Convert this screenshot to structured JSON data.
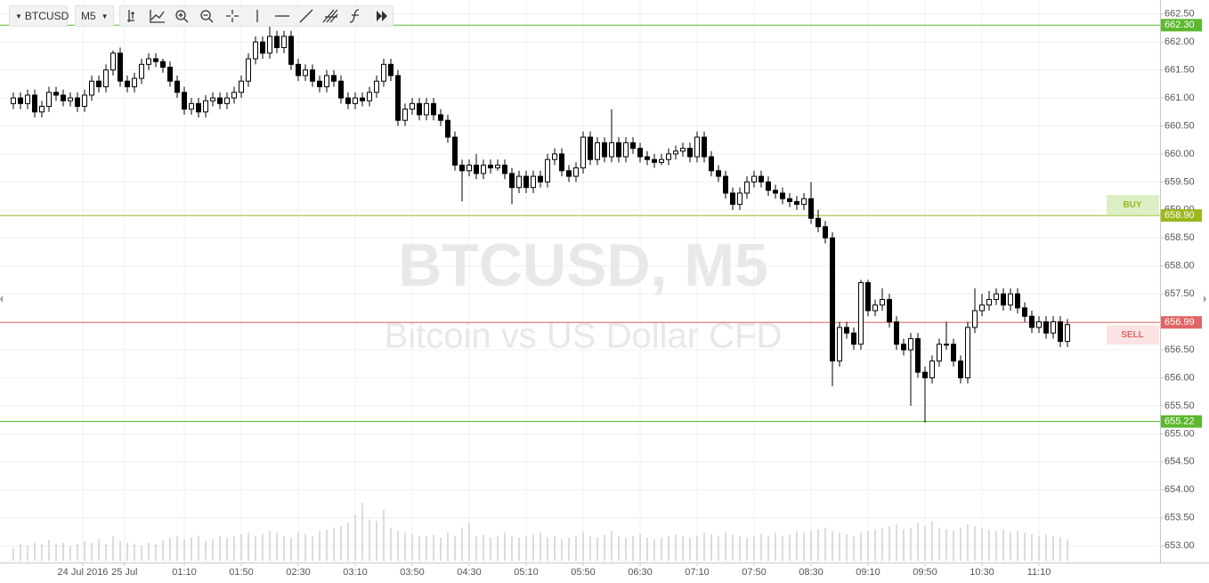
{
  "toolbar": {
    "symbol": "BTCUSD",
    "interval": "M5"
  },
  "chart_data": {
    "type": "candlestick",
    "watermark_title": "BTCUSD, M5",
    "watermark_subtitle": "Bitcoin vs US Dollar CFD",
    "ylim": [
      652.7,
      662.75
    ],
    "yticks": [
      {
        "value": 653,
        "label": "653.00"
      },
      {
        "value": 653.5,
        "label": "653.50"
      },
      {
        "value": 654,
        "label": "654.00"
      },
      {
        "value": 654.5,
        "label": "654.50"
      },
      {
        "value": 655,
        "label": "655.00"
      },
      {
        "value": 655.5,
        "label": "655.50"
      },
      {
        "value": 656,
        "label": "656.00"
      },
      {
        "value": 656.5,
        "label": "656.50"
      },
      {
        "value": 657,
        "label": "657.00"
      },
      {
        "value": 657.5,
        "label": "657.50"
      },
      {
        "value": 658,
        "label": "658.00"
      },
      {
        "value": 658.5,
        "label": "658.50"
      },
      {
        "value": 659,
        "label": "659.00"
      },
      {
        "value": 659.5,
        "label": "659.50"
      },
      {
        "value": 660,
        "label": "660.00"
      },
      {
        "value": 660.5,
        "label": "660.50"
      },
      {
        "value": 661,
        "label": "661.00"
      },
      {
        "value": 661.5,
        "label": "661.50"
      },
      {
        "value": 662,
        "label": "662.00"
      },
      {
        "value": 662.5,
        "label": "662.50"
      }
    ],
    "xticks": [
      {
        "value": 9.75,
        "label": "24 Jul 2016"
      },
      {
        "value": 15.6,
        "label": "25 Jul"
      },
      {
        "value": 24,
        "label": "01:10"
      },
      {
        "value": 32,
        "label": "01:50"
      },
      {
        "value": 40,
        "label": "02:30"
      },
      {
        "value": 48,
        "label": "03:10"
      },
      {
        "value": 56,
        "label": "03:50"
      },
      {
        "value": 64,
        "label": "04:30"
      },
      {
        "value": 72,
        "label": "05:10"
      },
      {
        "value": 80,
        "label": "05:50"
      },
      {
        "value": 88,
        "label": "06:30"
      },
      {
        "value": 96,
        "label": "07:10"
      },
      {
        "value": 104,
        "label": "07:50"
      },
      {
        "value": 112,
        "label": "08:30"
      },
      {
        "value": 120,
        "label": "09:10"
      },
      {
        "value": 128,
        "label": "09:50"
      },
      {
        "value": 136,
        "label": "10:30"
      },
      {
        "value": 144,
        "label": "11:10"
      }
    ],
    "grid": true,
    "up_color": "#ffffff",
    "down_color": "#000000",
    "volume_color": "#b8b8b8",
    "levels": [
      {
        "value": 662.3,
        "label": "662.30",
        "color": "#5cb82d"
      },
      {
        "value": 658.9,
        "label": "658.90",
        "color": "#9ab81e",
        "tag": "BUY",
        "tag_color": "#dcefc4"
      },
      {
        "value": 656.99,
        "label": "656.99",
        "color": "#e06666",
        "tag": "SELL",
        "tag_color": "#fbe3e3"
      },
      {
        "value": 655.22,
        "label": "655.22",
        "color": "#5cb82d"
      }
    ],
    "ohlc": [
      [
        660.9,
        661.1,
        660.8,
        661.0
      ],
      [
        661.0,
        661.1,
        660.8,
        660.9
      ],
      [
        660.9,
        661.15,
        660.8,
        661.05
      ],
      [
        661.05,
        661.15,
        660.65,
        660.75
      ],
      [
        660.75,
        660.95,
        660.65,
        660.85
      ],
      [
        660.85,
        661.2,
        660.75,
        661.1
      ],
      [
        661.1,
        661.2,
        660.95,
        661.05
      ],
      [
        661.05,
        661.15,
        660.85,
        660.95
      ],
      [
        660.95,
        661.1,
        660.85,
        661.0
      ],
      [
        661.0,
        661.1,
        660.75,
        660.85
      ],
      [
        660.85,
        661.15,
        660.75,
        661.05
      ],
      [
        661.05,
        661.4,
        660.95,
        661.3
      ],
      [
        661.3,
        661.4,
        661.1,
        661.2
      ],
      [
        661.2,
        661.6,
        661.1,
        661.5
      ],
      [
        661.5,
        661.85,
        661.4,
        661.8
      ],
      [
        661.8,
        661.9,
        661.2,
        661.3
      ],
      [
        661.3,
        661.4,
        661.1,
        661.2
      ],
      [
        661.2,
        661.45,
        661.1,
        661.35
      ],
      [
        661.35,
        661.7,
        661.25,
        661.6
      ],
      [
        661.6,
        661.8,
        661.5,
        661.7
      ],
      [
        661.7,
        661.8,
        661.55,
        661.65
      ],
      [
        661.65,
        661.7,
        661.45,
        661.55
      ],
      [
        661.55,
        661.65,
        661.2,
        661.3
      ],
      [
        661.3,
        661.4,
        661.0,
        661.1
      ],
      [
        661.1,
        661.2,
        660.7,
        660.8
      ],
      [
        660.8,
        661.0,
        660.7,
        660.9
      ],
      [
        660.9,
        661.0,
        660.65,
        660.75
      ],
      [
        660.75,
        661.05,
        660.65,
        660.95
      ],
      [
        660.95,
        661.1,
        660.85,
        661.0
      ],
      [
        661.0,
        661.1,
        660.8,
        660.9
      ],
      [
        660.9,
        661.1,
        660.8,
        661.0
      ],
      [
        661.0,
        661.2,
        660.9,
        661.1
      ],
      [
        661.1,
        661.4,
        661.0,
        661.3
      ],
      [
        661.3,
        661.8,
        661.2,
        661.7
      ],
      [
        661.7,
        662.1,
        661.6,
        662.0
      ],
      [
        662.0,
        662.1,
        661.7,
        661.8
      ],
      [
        661.8,
        662.3,
        661.7,
        662.1
      ],
      [
        662.1,
        662.2,
        661.8,
        661.9
      ],
      [
        661.9,
        662.2,
        661.8,
        662.1
      ],
      [
        662.1,
        662.2,
        661.5,
        661.6
      ],
      [
        661.6,
        661.7,
        661.3,
        661.4
      ],
      [
        661.4,
        661.6,
        661.3,
        661.5
      ],
      [
        661.5,
        661.6,
        661.2,
        661.3
      ],
      [
        661.3,
        661.4,
        661.1,
        661.2
      ],
      [
        661.2,
        661.5,
        661.1,
        661.4
      ],
      [
        661.4,
        661.5,
        661.2,
        661.3
      ],
      [
        661.3,
        661.4,
        660.9,
        661.0
      ],
      [
        661.0,
        661.1,
        660.8,
        660.9
      ],
      [
        660.9,
        661.1,
        660.8,
        661.0
      ],
      [
        661.0,
        661.1,
        660.85,
        660.95
      ],
      [
        660.95,
        661.2,
        660.85,
        661.1
      ],
      [
        661.1,
        661.4,
        661.0,
        661.3
      ],
      [
        661.3,
        661.7,
        661.2,
        661.6
      ],
      [
        661.6,
        661.7,
        661.3,
        661.4
      ],
      [
        661.4,
        661.5,
        660.5,
        660.6
      ],
      [
        660.6,
        660.9,
        660.5,
        660.8
      ],
      [
        660.8,
        661.0,
        660.7,
        660.9
      ],
      [
        660.9,
        661.0,
        660.6,
        660.7
      ],
      [
        660.7,
        661.0,
        660.6,
        660.9
      ],
      [
        660.9,
        661.0,
        660.6,
        660.7
      ],
      [
        660.7,
        660.8,
        660.5,
        660.6
      ],
      [
        660.6,
        660.7,
        660.2,
        660.3
      ],
      [
        660.3,
        660.4,
        659.7,
        659.8
      ],
      [
        659.8,
        659.9,
        659.15,
        659.7
      ],
      [
        659.7,
        659.9,
        659.6,
        659.8
      ],
      [
        659.8,
        660.0,
        659.55,
        659.65
      ],
      [
        659.65,
        659.9,
        659.55,
        659.8
      ],
      [
        659.8,
        659.9,
        659.65,
        659.75
      ],
      [
        659.75,
        659.9,
        659.7,
        659.8
      ],
      [
        659.8,
        659.9,
        659.55,
        659.65
      ],
      [
        659.65,
        659.75,
        659.1,
        659.4
      ],
      [
        659.4,
        659.7,
        659.3,
        659.6
      ],
      [
        659.6,
        659.7,
        659.3,
        659.4
      ],
      [
        659.4,
        659.7,
        659.3,
        659.6
      ],
      [
        659.6,
        659.7,
        659.4,
        659.5
      ],
      [
        659.5,
        660.0,
        659.4,
        659.9
      ],
      [
        659.9,
        660.1,
        659.8,
        660.0
      ],
      [
        660.0,
        660.1,
        659.6,
        659.7
      ],
      [
        659.7,
        659.8,
        659.5,
        659.6
      ],
      [
        659.6,
        659.85,
        659.5,
        659.75
      ],
      [
        659.75,
        660.4,
        659.65,
        660.3
      ],
      [
        660.3,
        660.4,
        659.8,
        659.9
      ],
      [
        659.9,
        660.3,
        659.8,
        660.2
      ],
      [
        660.2,
        660.3,
        659.85,
        659.95
      ],
      [
        659.95,
        660.8,
        659.85,
        660.2
      ],
      [
        660.2,
        660.3,
        659.85,
        659.95
      ],
      [
        659.95,
        660.3,
        659.85,
        660.2
      ],
      [
        660.2,
        660.3,
        660.0,
        660.1
      ],
      [
        660.1,
        660.2,
        659.85,
        659.95
      ],
      [
        659.95,
        660.05,
        659.8,
        659.9
      ],
      [
        659.9,
        660.0,
        659.75,
        659.85
      ],
      [
        659.85,
        660.0,
        659.8,
        659.9
      ],
      [
        659.9,
        660.1,
        659.8,
        660.0
      ],
      [
        660.0,
        660.15,
        659.9,
        660.05
      ],
      [
        660.05,
        660.2,
        659.95,
        660.1
      ],
      [
        660.1,
        660.2,
        659.85,
        659.95
      ],
      [
        659.95,
        660.4,
        659.85,
        660.3
      ],
      [
        660.3,
        660.4,
        659.85,
        659.95
      ],
      [
        659.95,
        660.05,
        659.6,
        659.7
      ],
      [
        659.7,
        659.8,
        659.5,
        659.6
      ],
      [
        659.6,
        659.7,
        659.2,
        659.3
      ],
      [
        659.3,
        659.4,
        659.0,
        659.1
      ],
      [
        659.1,
        659.4,
        659.0,
        659.3
      ],
      [
        659.3,
        659.6,
        659.2,
        659.5
      ],
      [
        659.5,
        659.7,
        659.4,
        659.6
      ],
      [
        659.6,
        659.7,
        659.4,
        659.5
      ],
      [
        659.5,
        659.6,
        659.25,
        659.35
      ],
      [
        659.35,
        659.45,
        659.2,
        659.3
      ],
      [
        659.3,
        659.4,
        659.1,
        659.2
      ],
      [
        659.2,
        659.3,
        659.05,
        659.15
      ],
      [
        659.15,
        659.25,
        659.0,
        659.1
      ],
      [
        659.1,
        659.3,
        659.0,
        659.2
      ],
      [
        659.2,
        659.5,
        658.75,
        658.85
      ],
      [
        658.85,
        659.0,
        658.6,
        658.7
      ],
      [
        658.7,
        658.8,
        658.4,
        658.5
      ],
      [
        658.5,
        658.6,
        655.85,
        656.3
      ],
      [
        656.3,
        657.0,
        656.2,
        656.9
      ],
      [
        656.9,
        657.0,
        656.7,
        656.8
      ],
      [
        656.8,
        656.9,
        656.5,
        656.6
      ],
      [
        656.6,
        657.75,
        656.5,
        657.7
      ],
      [
        657.7,
        657.75,
        657.1,
        657.2
      ],
      [
        657.2,
        657.4,
        657.1,
        657.3
      ],
      [
        657.3,
        657.6,
        657.2,
        657.4
      ],
      [
        657.4,
        657.5,
        656.9,
        657.0
      ],
      [
        657.0,
        657.1,
        656.5,
        656.6
      ],
      [
        656.6,
        656.7,
        656.4,
        656.5
      ],
      [
        656.5,
        656.8,
        655.5,
        656.7
      ],
      [
        656.7,
        656.8,
        656.0,
        656.1
      ],
      [
        656.1,
        656.2,
        655.2,
        656.0
      ],
      [
        656.0,
        656.4,
        655.9,
        656.3
      ],
      [
        656.3,
        656.7,
        656.2,
        656.6
      ],
      [
        656.6,
        657.0,
        656.5,
        656.6
      ],
      [
        656.6,
        656.7,
        656.2,
        656.3
      ],
      [
        656.3,
        656.4,
        655.9,
        656.0
      ],
      [
        656.0,
        657.0,
        655.9,
        656.9
      ],
      [
        656.9,
        657.6,
        656.8,
        657.2
      ],
      [
        657.2,
        657.5,
        657.1,
        657.3
      ],
      [
        657.3,
        657.55,
        657.2,
        657.4
      ],
      [
        657.4,
        657.6,
        657.3,
        657.5
      ],
      [
        657.5,
        657.6,
        657.2,
        657.3
      ],
      [
        657.3,
        657.6,
        657.2,
        657.5
      ],
      [
        657.5,
        657.6,
        657.15,
        657.25
      ],
      [
        657.25,
        657.35,
        657.0,
        657.1
      ],
      [
        657.1,
        657.2,
        656.8,
        656.9
      ],
      [
        656.9,
        657.1,
        656.8,
        657.0
      ],
      [
        657.0,
        657.1,
        656.7,
        656.8
      ],
      [
        656.8,
        657.1,
        656.7,
        657.0
      ],
      [
        657.0,
        657.1,
        656.55,
        656.65
      ],
      [
        656.65,
        657.05,
        656.55,
        656.95
      ]
    ],
    "volume": [
      15,
      20,
      18,
      22,
      20,
      25,
      20,
      22,
      18,
      20,
      24,
      22,
      26,
      20,
      30,
      24,
      22,
      20,
      18,
      22,
      20,
      25,
      28,
      30,
      26,
      28,
      30,
      24,
      26,
      30,
      28,
      30,
      32,
      34,
      30,
      32,
      36,
      34,
      30,
      28,
      34,
      32,
      30,
      36,
      38,
      40,
      42,
      46,
      56,
      70,
      50,
      48,
      62,
      40,
      36,
      34,
      32,
      30,
      30,
      32,
      28,
      34,
      30,
      40,
      46,
      30,
      32,
      28,
      30,
      34,
      30,
      28,
      30,
      32,
      34,
      28,
      30,
      26,
      28,
      30,
      34,
      30,
      28,
      32,
      36,
      30,
      28,
      30,
      32,
      28,
      26,
      28,
      30,
      32,
      30,
      28,
      30,
      34,
      32,
      30,
      34,
      32,
      30,
      28,
      30,
      32,
      30,
      34,
      30,
      32,
      36,
      34,
      36,
      38,
      40,
      36,
      34,
      32,
      30,
      34,
      36,
      38,
      40,
      42,
      44,
      38,
      40,
      46,
      42,
      48,
      40,
      38,
      36,
      40,
      44,
      42,
      40,
      38,
      36,
      38,
      34,
      36,
      34,
      32,
      30,
      32,
      30,
      28,
      26
    ]
  }
}
